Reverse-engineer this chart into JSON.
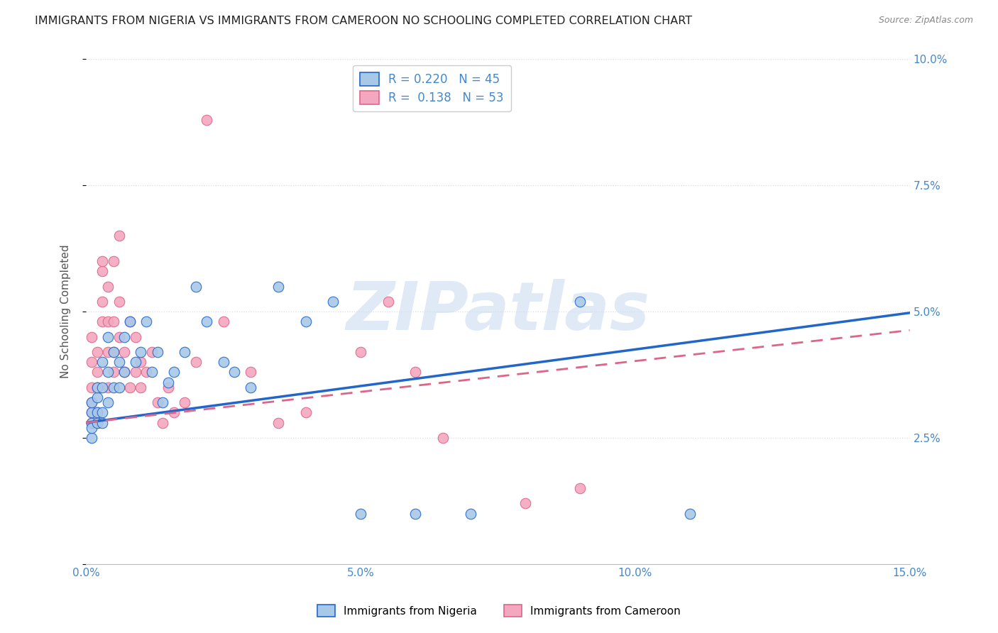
{
  "title": "IMMIGRANTS FROM NIGERIA VS IMMIGRANTS FROM CAMEROON NO SCHOOLING COMPLETED CORRELATION CHART",
  "source": "Source: ZipAtlas.com",
  "xlabel_nigeria": "Immigrants from Nigeria",
  "xlabel_cameroon": "Immigrants from Cameroon",
  "ylabel": "No Schooling Completed",
  "nigeria_R": 0.22,
  "nigeria_N": 45,
  "cameroon_R": 0.138,
  "cameroon_N": 53,
  "xmin": 0.0,
  "xmax": 0.15,
  "ymin": 0.0,
  "ymax": 0.1,
  "nigeria_color": "#a8c8e8",
  "cameroon_color": "#f4a8c0",
  "nigeria_line_color": "#2266cc",
  "cameroon_line_color": "#dd6688",
  "nigeria_x": [
    0.001,
    0.001,
    0.001,
    0.001,
    0.001,
    0.002,
    0.002,
    0.002,
    0.002,
    0.003,
    0.003,
    0.003,
    0.003,
    0.004,
    0.004,
    0.004,
    0.005,
    0.005,
    0.006,
    0.006,
    0.007,
    0.007,
    0.008,
    0.009,
    0.01,
    0.011,
    0.012,
    0.013,
    0.014,
    0.015,
    0.016,
    0.018,
    0.02,
    0.022,
    0.025,
    0.027,
    0.03,
    0.035,
    0.04,
    0.045,
    0.05,
    0.06,
    0.07,
    0.09,
    0.11
  ],
  "nigeria_y": [
    0.028,
    0.03,
    0.025,
    0.032,
    0.027,
    0.03,
    0.033,
    0.028,
    0.035,
    0.03,
    0.035,
    0.028,
    0.04,
    0.032,
    0.038,
    0.045,
    0.035,
    0.042,
    0.04,
    0.035,
    0.045,
    0.038,
    0.048,
    0.04,
    0.042,
    0.048,
    0.038,
    0.042,
    0.032,
    0.036,
    0.038,
    0.042,
    0.055,
    0.048,
    0.04,
    0.038,
    0.035,
    0.055,
    0.048,
    0.052,
    0.01,
    0.01,
    0.01,
    0.052,
    0.01
  ],
  "cameroon_x": [
    0.001,
    0.001,
    0.001,
    0.001,
    0.001,
    0.001,
    0.002,
    0.002,
    0.002,
    0.002,
    0.002,
    0.003,
    0.003,
    0.003,
    0.003,
    0.004,
    0.004,
    0.004,
    0.004,
    0.005,
    0.005,
    0.005,
    0.005,
    0.006,
    0.006,
    0.006,
    0.007,
    0.007,
    0.008,
    0.008,
    0.009,
    0.009,
    0.01,
    0.01,
    0.011,
    0.012,
    0.013,
    0.014,
    0.015,
    0.016,
    0.018,
    0.02,
    0.022,
    0.025,
    0.03,
    0.035,
    0.04,
    0.05,
    0.055,
    0.06,
    0.065,
    0.08,
    0.09
  ],
  "cameroon_y": [
    0.028,
    0.03,
    0.032,
    0.035,
    0.04,
    0.045,
    0.028,
    0.03,
    0.035,
    0.038,
    0.042,
    0.048,
    0.052,
    0.058,
    0.06,
    0.035,
    0.042,
    0.048,
    0.055,
    0.038,
    0.042,
    0.048,
    0.06,
    0.045,
    0.052,
    0.065,
    0.038,
    0.042,
    0.035,
    0.048,
    0.038,
    0.045,
    0.04,
    0.035,
    0.038,
    0.042,
    0.032,
    0.028,
    0.035,
    0.03,
    0.032,
    0.04,
    0.088,
    0.048,
    0.038,
    0.028,
    0.03,
    0.042,
    0.052,
    0.038,
    0.025,
    0.012,
    0.015
  ],
  "nigeria_line_intercept": 0.028,
  "nigeria_line_slope": 0.145,
  "cameroon_line_intercept": 0.028,
  "cameroon_line_slope": 0.122,
  "watermark_text": "ZIPatlas",
  "watermark_color": "#ccddf0",
  "grid_color": "#dddddd",
  "bg_color": "#ffffff",
  "tick_color": "#4488cc",
  "title_color": "#222222",
  "title_fontsize": 11.5,
  "source_fontsize": 9,
  "axis_label_fontsize": 11,
  "legend_fontsize": 12
}
